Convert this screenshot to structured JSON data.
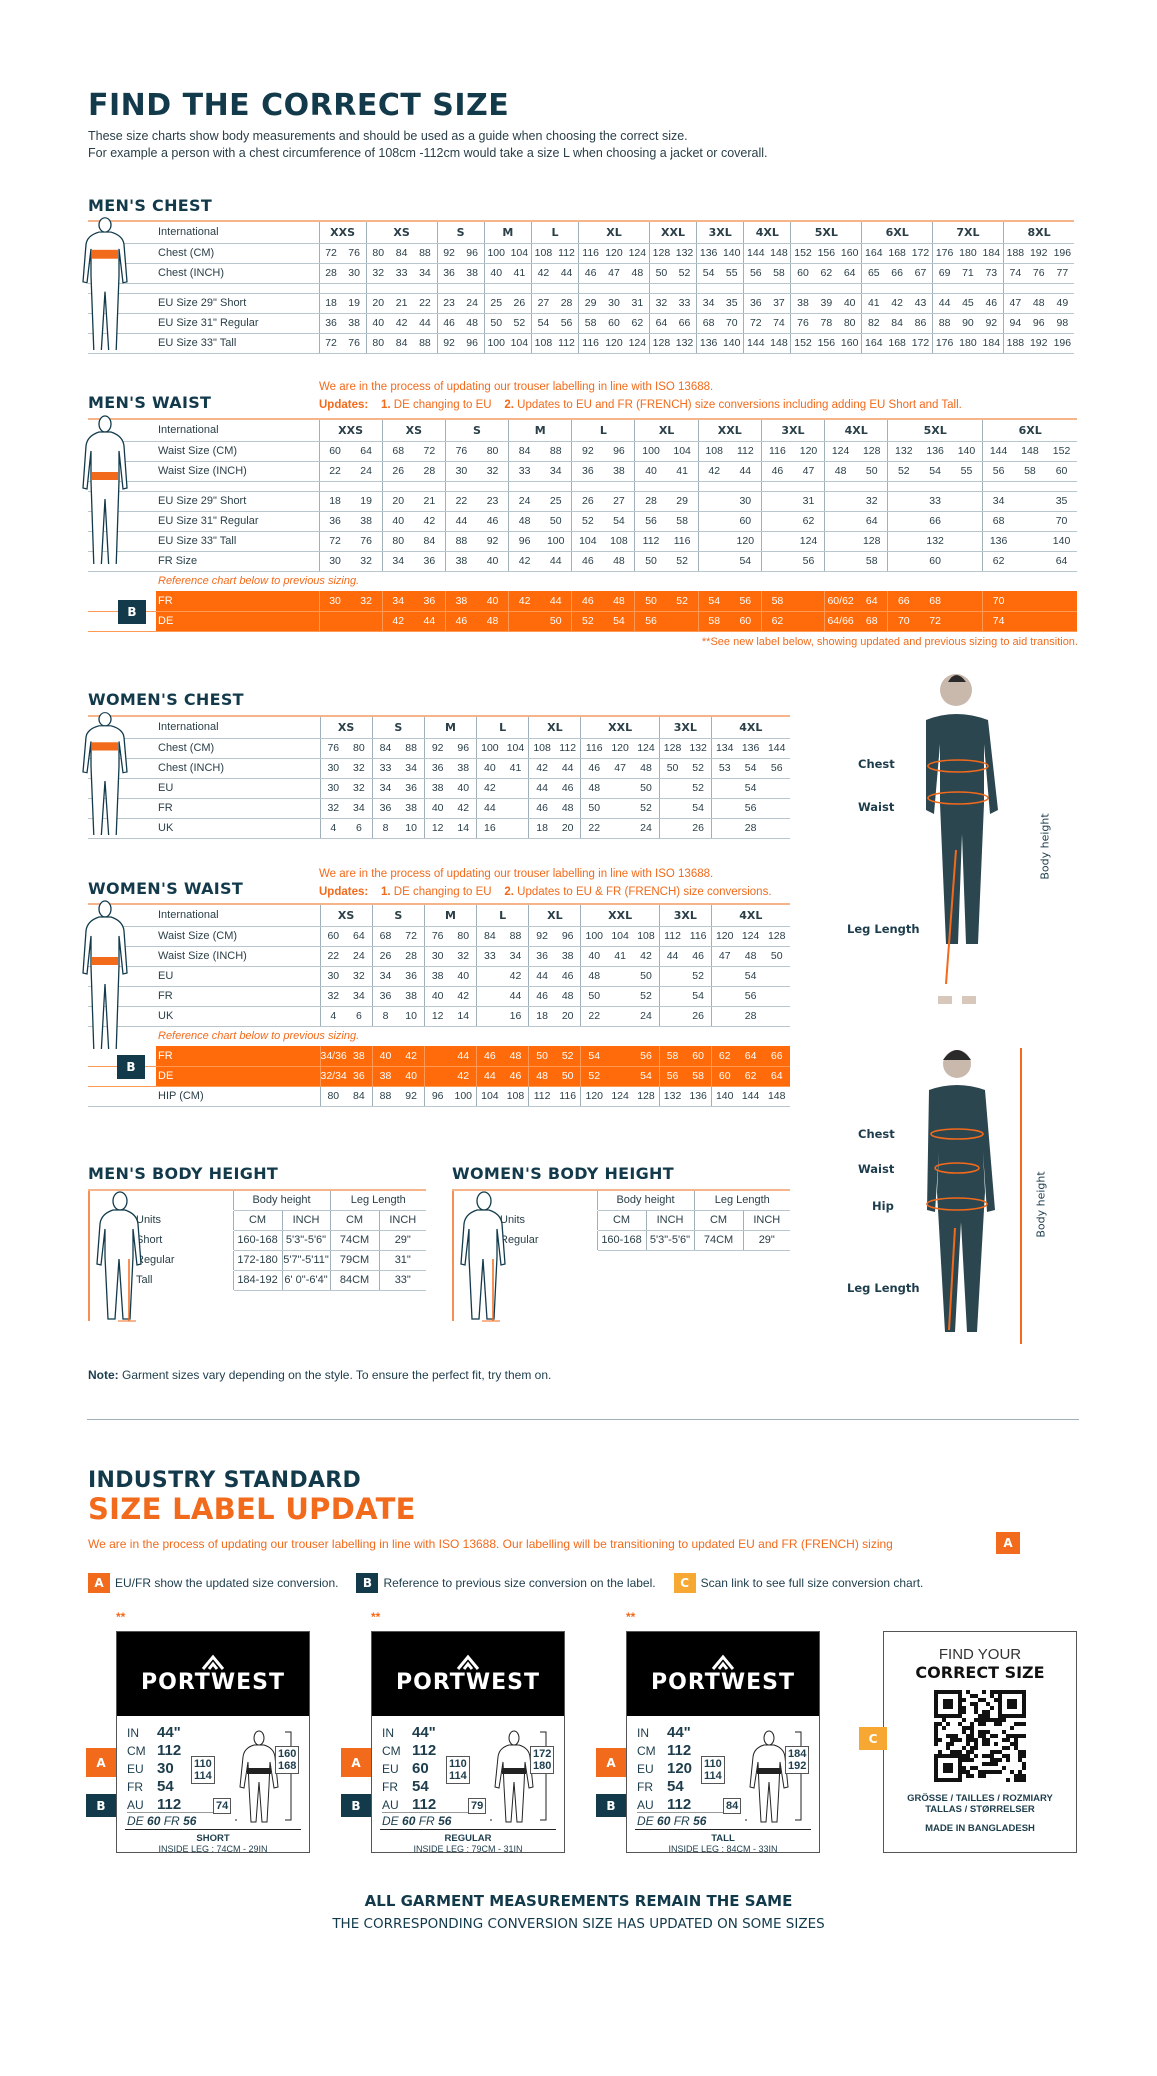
{
  "header": {
    "title": "FIND THE CORRECT SIZE",
    "lines": [
      "These size charts show body measurements and should be used as a guide when choosing the correct size.",
      "For example a person with a chest circumference of 108cm -112cm would take a size L when choosing a jacket or coverall."
    ]
  },
  "colors": {
    "primary": "#123a4b",
    "accent": "#f26a1b",
    "band": "#ff6b0a",
    "badge_c": "#f7a833"
  },
  "mens_chest": {
    "title": "MEN'S CHEST",
    "groups": [
      [
        "XXS",
        2
      ],
      [
        "XS",
        3
      ],
      [
        "S",
        2
      ],
      [
        "M",
        2
      ],
      [
        "L",
        2
      ],
      [
        "XL",
        3
      ],
      [
        "XXL",
        2
      ],
      [
        "3XL",
        2
      ],
      [
        "4XL",
        2
      ],
      [
        "5XL",
        3
      ],
      [
        "6XL",
        3
      ],
      [
        "7XL",
        3
      ],
      [
        "8XL",
        3
      ]
    ],
    "header_label": "International",
    "rows": [
      {
        "label": "Chest (CM)",
        "cells": [
          "72",
          "76",
          "80",
          "84",
          "88",
          "92",
          "96",
          "100",
          "104",
          "108",
          "112",
          "116",
          "120",
          "124",
          "128",
          "132",
          "136",
          "140",
          "144",
          "148",
          "152",
          "156",
          "160",
          "164",
          "168",
          "172",
          "176",
          "180",
          "184",
          "188",
          "192",
          "196"
        ]
      },
      {
        "label": "Chest (INCH)",
        "cells": [
          "28",
          "30",
          "32",
          "33",
          "34",
          "36",
          "38",
          "40",
          "41",
          "42",
          "44",
          "46",
          "47",
          "48",
          "50",
          "52",
          "54",
          "55",
          "56",
          "58",
          "60",
          "62",
          "64",
          "65",
          "66",
          "67",
          "69",
          "71",
          "73",
          "74",
          "76",
          "77"
        ]
      },
      {
        "gap": true
      },
      {
        "label": "EU Size 29\" Short",
        "cells": [
          "18",
          "19",
          "20",
          "21",
          "22",
          "23",
          "24",
          "25",
          "26",
          "27",
          "28",
          "29",
          "30",
          "31",
          "32",
          "33",
          "34",
          "35",
          "36",
          "37",
          "38",
          "39",
          "40",
          "41",
          "42",
          "43",
          "44",
          "45",
          "46",
          "47",
          "48",
          "49"
        ]
      },
      {
        "label": "EU Size 31\" Regular",
        "cells": [
          "36",
          "38",
          "40",
          "42",
          "44",
          "46",
          "48",
          "50",
          "52",
          "54",
          "56",
          "58",
          "60",
          "62",
          "64",
          "66",
          "68",
          "70",
          "72",
          "74",
          "76",
          "78",
          "80",
          "82",
          "84",
          "86",
          "88",
          "90",
          "92",
          "94",
          "96",
          "98"
        ]
      },
      {
        "label": "EU Size 33\" Tall",
        "cells": [
          "72",
          "76",
          "80",
          "84",
          "88",
          "92",
          "96",
          "100",
          "104",
          "108",
          "112",
          "116",
          "120",
          "124",
          "128",
          "132",
          "136",
          "140",
          "144",
          "148",
          "152",
          "156",
          "160",
          "164",
          "168",
          "172",
          "176",
          "180",
          "184",
          "188",
          "192",
          "196"
        ]
      }
    ]
  },
  "mens_waist": {
    "title": "MEN'S WAIST",
    "notice": "We are in the process of updating our trouser labelling in line with ISO 13688.",
    "updates_label": "Updates:",
    "update_1_num": "1.",
    "update_1": "DE changing to EU",
    "update_2_num": "2.",
    "update_2": "Updates to EU and FR (FRENCH) size conversions including adding EU Short and Tall.",
    "header_label": "International",
    "groups": [
      [
        "XXS",
        2
      ],
      [
        "XS",
        2
      ],
      [
        "S",
        2
      ],
      [
        "M",
        2
      ],
      [
        "L",
        2
      ],
      [
        "XL",
        2
      ],
      [
        "XXL",
        2
      ],
      [
        "3XL",
        2
      ],
      [
        "4XL",
        2
      ],
      [
        "5XL",
        3
      ],
      [
        "6XL",
        3
      ]
    ],
    "rows": [
      {
        "label": "Waist Size (CM)",
        "cells": [
          "60",
          "64",
          "68",
          "72",
          "76",
          "80",
          "84",
          "88",
          "92",
          "96",
          "100",
          "104",
          "108",
          "112",
          "116",
          "120",
          "124",
          "128",
          "132",
          "136",
          "140",
          "144",
          "148",
          "152"
        ]
      },
      {
        "label": "Waist Size (INCH)",
        "cells": [
          "22",
          "24",
          "26",
          "28",
          "30",
          "32",
          "33",
          "34",
          "36",
          "38",
          "40",
          "41",
          "42",
          "44",
          "46",
          "47",
          "48",
          "50",
          "52",
          "54",
          "55",
          "56",
          "58",
          "60"
        ]
      },
      {
        "gap": true
      },
      {
        "label": "EU Size 29\" Short",
        "cells": [
          "18",
          "19",
          "20",
          "21",
          "22",
          "23",
          "24",
          "25",
          "26",
          "27",
          "28",
          "29",
          "",
          "30",
          "",
          "31",
          "",
          "32",
          "",
          "33",
          "",
          "34",
          "",
          "35"
        ]
      },
      {
        "label": "EU Size 31\" Regular",
        "cells": [
          "36",
          "38",
          "40",
          "42",
          "44",
          "46",
          "48",
          "50",
          "52",
          "54",
          "56",
          "58",
          "",
          "60",
          "",
          "62",
          "",
          "64",
          "",
          "66",
          "",
          "68",
          "",
          "70"
        ]
      },
      {
        "label": "EU Size 33\" Tall",
        "cells": [
          "72",
          "76",
          "80",
          "84",
          "88",
          "92",
          "96",
          "100",
          "104",
          "108",
          "112",
          "116",
          "",
          "120",
          "",
          "124",
          "",
          "128",
          "",
          "132",
          "",
          "136",
          "",
          "140"
        ]
      },
      {
        "label": "FR Size",
        "cells": [
          "30",
          "32",
          "34",
          "36",
          "38",
          "40",
          "42",
          "44",
          "46",
          "48",
          "50",
          "52",
          "",
          "54",
          "",
          "56",
          "",
          "58",
          "",
          "60",
          "",
          "62",
          "",
          "64"
        ]
      },
      {
        "ref": "Reference chart below to previous sizing."
      },
      {
        "label": "FR",
        "orange": true,
        "cells": [
          "30",
          "32",
          "34",
          "36",
          "38",
          "40",
          "42",
          "44",
          "46",
          "48",
          "50",
          "52",
          "54",
          "56",
          "58",
          "",
          "60/62",
          "64",
          "66",
          "68",
          "",
          "70",
          "",
          ""
        ]
      },
      {
        "label": "DE",
        "orange": true,
        "cells": [
          "",
          "",
          "42",
          "44",
          "46",
          "48",
          "",
          "50",
          "52",
          "54",
          "56",
          "",
          "58",
          "60",
          "62",
          "",
          "64/66",
          "68",
          "70",
          "72",
          "",
          "74",
          "",
          ""
        ]
      }
    ],
    "badge": "B",
    "footnote": "**See new label below, showing updated and previous sizing to aid transition."
  },
  "womens_chest": {
    "title": "WOMEN'S CHEST",
    "header_label": "International",
    "groups": [
      [
        "XS",
        2
      ],
      [
        "S",
        2
      ],
      [
        "M",
        2
      ],
      [
        "L",
        2
      ],
      [
        "XL",
        2
      ],
      [
        "XXL",
        3
      ],
      [
        "3XL",
        2
      ],
      [
        "4XL",
        3
      ]
    ],
    "rows": [
      {
        "label": "Chest (CM)",
        "cells": [
          "76",
          "80",
          "84",
          "88",
          "92",
          "96",
          "100",
          "104",
          "108",
          "112",
          "116",
          "120",
          "124",
          "128",
          "132",
          "134",
          "136",
          "144"
        ]
      },
      {
        "label": "Chest (INCH)",
        "cells": [
          "30",
          "32",
          "33",
          "34",
          "36",
          "38",
          "40",
          "41",
          "42",
          "44",
          "46",
          "47",
          "48",
          "50",
          "52",
          "53",
          "54",
          "56"
        ]
      },
      {
        "label": "EU",
        "cells": [
          "30",
          "32",
          "34",
          "36",
          "38",
          "40",
          "42",
          "",
          "44",
          "46",
          "48",
          "",
          "50",
          "",
          "52",
          "",
          "54",
          ""
        ]
      },
      {
        "label": "FR",
        "cells": [
          "32",
          "34",
          "36",
          "38",
          "40",
          "42",
          "44",
          "",
          "46",
          "48",
          "50",
          "",
          "52",
          "",
          "54",
          "",
          "56",
          ""
        ]
      },
      {
        "label": "UK",
        "cells": [
          "4",
          "6",
          "8",
          "10",
          "12",
          "14",
          "16",
          "",
          "18",
          "20",
          "22",
          "",
          "24",
          "",
          "26",
          "",
          "28",
          ""
        ]
      }
    ]
  },
  "womens_waist": {
    "title": "WOMEN'S WAIST",
    "notice": "We are in the process of updating our trouser labelling in line with ISO 13688.",
    "updates_label": "Updates:",
    "update_1_num": "1.",
    "update_1": "DE changing to EU",
    "update_2_num": "2.",
    "update_2": "Updates to EU & FR (FRENCH) size conversions.",
    "header_label": "International",
    "groups": [
      [
        "XS",
        2
      ],
      [
        "S",
        2
      ],
      [
        "M",
        2
      ],
      [
        "L",
        2
      ],
      [
        "XL",
        2
      ],
      [
        "XXL",
        3
      ],
      [
        "3XL",
        2
      ],
      [
        "4XL",
        3
      ]
    ],
    "rows": [
      {
        "label": "Waist Size (CM)",
        "cells": [
          "60",
          "64",
          "68",
          "72",
          "76",
          "80",
          "84",
          "88",
          "92",
          "96",
          "100",
          "104",
          "108",
          "112",
          "116",
          "120",
          "124",
          "128"
        ]
      },
      {
        "label": "Waist Size (INCH)",
        "cells": [
          "22",
          "24",
          "26",
          "28",
          "30",
          "32",
          "33",
          "34",
          "36",
          "38",
          "40",
          "41",
          "42",
          "44",
          "46",
          "47",
          "48",
          "50"
        ]
      },
      {
        "label": "EU",
        "cells": [
          "30",
          "32",
          "34",
          "36",
          "38",
          "40",
          "",
          "42",
          "44",
          "46",
          "48",
          "",
          "50",
          "",
          "52",
          "",
          "54",
          ""
        ]
      },
      {
        "label": "FR",
        "cells": [
          "32",
          "34",
          "36",
          "38",
          "40",
          "42",
          "",
          "44",
          "46",
          "48",
          "50",
          "",
          "52",
          "",
          "54",
          "",
          "56",
          ""
        ]
      },
      {
        "label": "UK",
        "cells": [
          "4",
          "6",
          "8",
          "10",
          "12",
          "14",
          "",
          "16",
          "18",
          "20",
          "22",
          "",
          "24",
          "",
          "26",
          "",
          "28",
          ""
        ]
      },
      {
        "ref": "Reference chart below to previous sizing."
      },
      {
        "label": "FR",
        "orange": true,
        "cells": [
          "34/36",
          "38",
          "40",
          "42",
          "",
          "44",
          "46",
          "48",
          "50",
          "52",
          "54",
          "",
          "56",
          "58",
          "60",
          "62",
          "64",
          "66"
        ]
      },
      {
        "label": "DE",
        "orange": true,
        "cells": [
          "32/34",
          "36",
          "38",
          "40",
          "",
          "42",
          "44",
          "46",
          "48",
          "50",
          "52",
          "",
          "54",
          "56",
          "58",
          "60",
          "62",
          "64"
        ]
      },
      {
        "label": "HIP (CM)",
        "cells": [
          "80",
          "84",
          "88",
          "92",
          "96",
          "100",
          "104",
          "108",
          "112",
          "116",
          "120",
          "124",
          "128",
          "132",
          "136",
          "140",
          "144",
          "148"
        ]
      }
    ],
    "badge": "B"
  },
  "mens_height": {
    "title": "MEN'S BODY HEIGHT",
    "col_groups": [
      "Body height",
      "Leg Length"
    ],
    "units_label": "Units",
    "units": [
      "CM",
      "INCH",
      "CM",
      "INCH"
    ],
    "rows": [
      {
        "label": "Short",
        "cells": [
          "160-168",
          "5'3\"-5'6\"",
          "74CM",
          "29\""
        ]
      },
      {
        "label": "Regular",
        "cells": [
          "172-180",
          "5'7\"-5'11\"",
          "79CM",
          "31\""
        ]
      },
      {
        "label": "Tall",
        "cells": [
          "184-192",
          "6' 0\"-6'4\"",
          "84CM",
          "33\""
        ]
      }
    ]
  },
  "womens_height": {
    "title": "WOMEN'S BODY HEIGHT",
    "col_groups": [
      "Body height",
      "Leg Length"
    ],
    "units_label": "Units",
    "units": [
      "CM",
      "INCH",
      "CM",
      "INCH"
    ],
    "rows": [
      {
        "label": "Regular",
        "cells": [
          "160-168",
          "5'3\"-5'6\"",
          "74CM",
          "29\""
        ]
      }
    ]
  },
  "figures": {
    "man": {
      "chest": "Chest",
      "waist": "Waist",
      "leg": "Leg Length",
      "height": "Body height"
    },
    "woman": {
      "chest": "Chest",
      "waist": "Waist",
      "hip": "Hip",
      "leg": "Leg Length",
      "height": "Body height"
    }
  },
  "note": {
    "label": "Note:",
    "text": "Garment sizes vary depending on the style. To ensure the perfect fit, try them on."
  },
  "label_update": {
    "title_1": "INDUSTRY STANDARD",
    "title_2": "SIZE LABEL UPDATE",
    "notice": "We are in the process of updating our trouser labelling in line with ISO 13688. Our labelling will be transitioning to updated EU and FR (FRENCH) sizing",
    "notice_badge": "A",
    "legend": [
      {
        "badge": "A",
        "text": "EU/FR show the updated size conversion."
      },
      {
        "badge": "B",
        "text": "Reference to previous size conversion on the label."
      },
      {
        "badge": "C",
        "text": "Scan link to see full size conversion chart."
      }
    ],
    "labels": [
      {
        "marker": "**",
        "brand": "PORTWEST",
        "values": [
          [
            "IN",
            "44\""
          ],
          [
            "CM",
            "112"
          ],
          [
            "EU",
            "30"
          ],
          [
            "FR",
            "54"
          ],
          [
            "AU",
            "112"
          ]
        ],
        "de": "DE",
        "de_v": "60",
        "fr": "FR",
        "fr_v": "56",
        "waist_box": [
          "110",
          "114"
        ],
        "height_box": [
          "160",
          "168"
        ],
        "leg_box": "74",
        "fit": "SHORT",
        "inside_leg": "INSIDE LEG : 74CM - 29IN"
      },
      {
        "marker": "**",
        "brand": "PORTWEST",
        "values": [
          [
            "IN",
            "44\""
          ],
          [
            "CM",
            "112"
          ],
          [
            "EU",
            "60"
          ],
          [
            "FR",
            "54"
          ],
          [
            "AU",
            "112"
          ]
        ],
        "de": "DE",
        "de_v": "60",
        "fr": "FR",
        "fr_v": "56",
        "waist_box": [
          "110",
          "114"
        ],
        "height_box": [
          "172",
          "180"
        ],
        "leg_box": "79",
        "fit": "REGULAR",
        "inside_leg": "INSIDE LEG : 79CM - 31IN"
      },
      {
        "marker": "**",
        "brand": "PORTWEST",
        "values": [
          [
            "IN",
            "44\""
          ],
          [
            "CM",
            "112"
          ],
          [
            "EU",
            "120"
          ],
          [
            "FR",
            "54"
          ],
          [
            "AU",
            "112"
          ]
        ],
        "de": "DE",
        "de_v": "60",
        "fr": "FR",
        "fr_v": "56",
        "waist_box": [
          "110",
          "114"
        ],
        "height_box": [
          "184",
          "192"
        ],
        "leg_box": "84",
        "fit": "TALL",
        "inside_leg": "INSIDE LEG : 84CM - 33IN"
      }
    ],
    "qr_card": {
      "line_1": "FIND YOUR",
      "line_2": "CORRECT SIZE",
      "languages_1": "GRÖSSE / TAILLES / ROZMIARY",
      "languages_2": "TALLAS  / STØRRELSER",
      "origin": "MADE IN BANGLADESH",
      "badge": "C"
    },
    "badge_a": "A",
    "badge_b": "B"
  },
  "footer": {
    "line_1": "ALL GARMENT MEASUREMENTS REMAIN THE SAME",
    "line_2": "THE CORRESPONDING CONVERSION SIZE HAS UPDATED ON SOME SIZES"
  }
}
